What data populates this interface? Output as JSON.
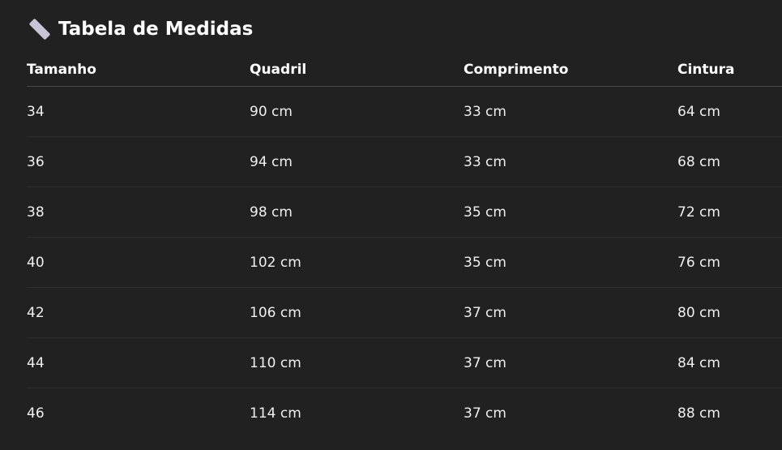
{
  "title": {
    "icon": "straight-ruler-icon",
    "text": "Tabela de Medidas"
  },
  "table": {
    "headers": [
      "Tamanho",
      "Quadril",
      "Comprimento",
      "Cintura"
    ],
    "rows": [
      [
        "34",
        "90 cm",
        "33 cm",
        "64 cm"
      ],
      [
        "36",
        "94 cm",
        "33 cm",
        "68 cm"
      ],
      [
        "38",
        "98 cm",
        "35 cm",
        "72 cm"
      ],
      [
        "40",
        "102 cm",
        "35 cm",
        "76 cm"
      ],
      [
        "42",
        "106 cm",
        "37 cm",
        "80 cm"
      ],
      [
        "44",
        "110 cm",
        "37 cm",
        "84 cm"
      ],
      [
        "46",
        "114 cm",
        "37 cm",
        "88 cm"
      ]
    ]
  }
}
